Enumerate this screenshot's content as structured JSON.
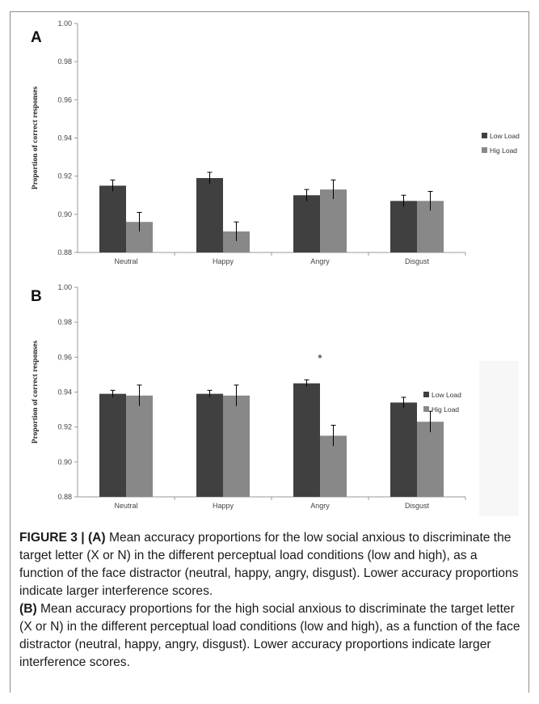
{
  "chart_data": [
    {
      "type": "bar",
      "panel_label": "A",
      "categories": [
        "Neutral",
        "Happy",
        "Angry",
        "Disgust"
      ],
      "series": [
        {
          "name": "Low Load",
          "color": "#404040",
          "values": [
            0.915,
            0.919,
            0.91,
            0.907
          ],
          "errors": [
            0.003,
            0.003,
            0.003,
            0.003
          ]
        },
        {
          "name": "Hig Load",
          "color": "#888888",
          "values": [
            0.896,
            0.891,
            0.913,
            0.907
          ],
          "errors": [
            0.005,
            0.005,
            0.005,
            0.005
          ]
        }
      ],
      "ylabel": "Proportion  of  correct responses",
      "ylim": [
        0.88,
        1.0
      ],
      "yticks": [
        "0.88",
        "0.90",
        "0.92",
        "0.94",
        "0.96",
        "0.98",
        "1.00"
      ],
      "legend_position": "right",
      "annotations": []
    },
    {
      "type": "bar",
      "panel_label": "B",
      "categories": [
        "Neutral",
        "Happy",
        "Angry",
        "Disgust"
      ],
      "series": [
        {
          "name": "Low Load",
          "color": "#404040",
          "values": [
            0.939,
            0.939,
            0.945,
            0.934
          ],
          "errors": [
            0.002,
            0.002,
            0.002,
            0.003
          ]
        },
        {
          "name": "Hig Load",
          "color": "#888888",
          "values": [
            0.938,
            0.938,
            0.915,
            0.923
          ],
          "errors": [
            0.006,
            0.006,
            0.006,
            0.006
          ]
        }
      ],
      "ylabel": "Proportion  of  correct responses",
      "ylim": [
        0.88,
        1.0
      ],
      "yticks": [
        "0.88",
        "0.90",
        "0.92",
        "0.94",
        "0.96",
        "0.98",
        "1.00"
      ],
      "legend_position": "right",
      "annotations": [
        {
          "category": "Angry",
          "text": "*"
        }
      ]
    }
  ],
  "caption": {
    "figure_label": "FIGURE 3 |",
    "a_label": "(A)",
    "a_text": "Mean accuracy proportions for the low social anxious to discriminate the target letter (X or N) in the different perceptual load conditions (low and high), as a function of the face distractor (neutral, happy, angry, disgust). Lower accuracy proportions indicate larger interference scores.",
    "b_label": "(B)",
    "b_text": "Mean accuracy proportions for the high social anxious to discriminate the target letter (X or N) in the different perceptual load conditions (low and high), as a function of the face distractor (neutral, happy, angry, disgust). Lower accuracy proportions indicate larger interference scores."
  }
}
